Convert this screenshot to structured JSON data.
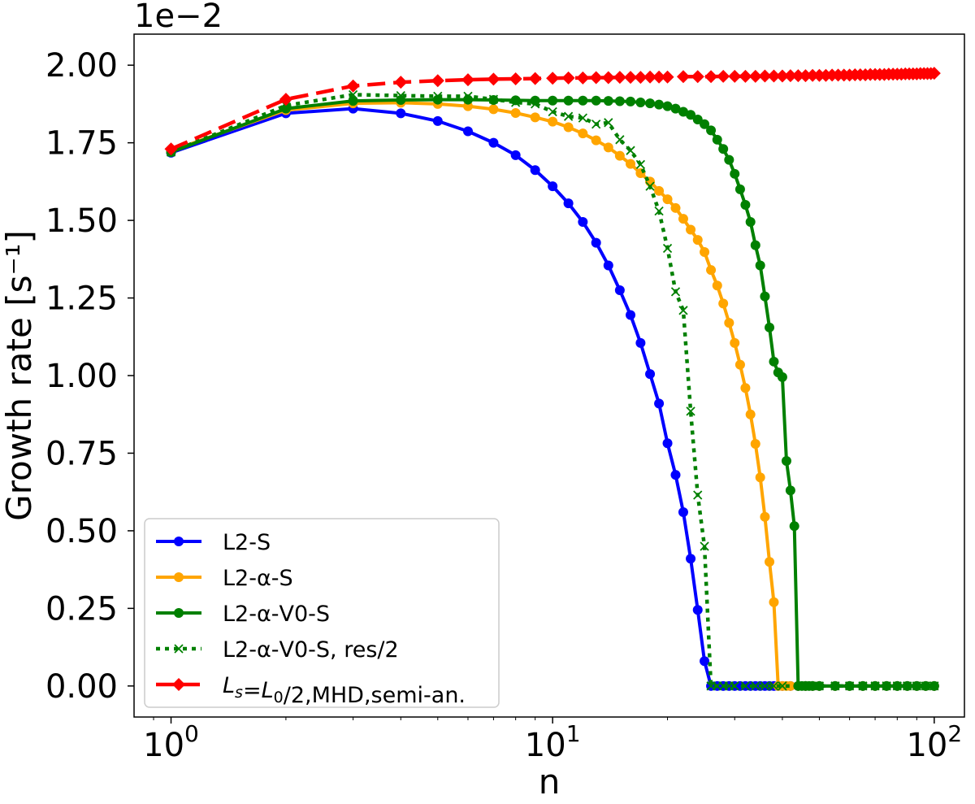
{
  "chart_data": {
    "type": "line",
    "xscale": "log",
    "xlim": [
      0.8,
      120
    ],
    "ylim": [
      -0.1,
      2.1
    ],
    "yscale_offset": "1e−2",
    "xlabel": "n",
    "ylabel": "Growth rate [s⁻¹]",
    "x_ticks": [
      1,
      10,
      100
    ],
    "x_tick_labels": [
      {
        "base": "10",
        "exp": "0"
      },
      {
        "base": "10",
        "exp": "1"
      },
      {
        "base": "10",
        "exp": "2"
      }
    ],
    "y_ticks": [
      0,
      0.25,
      0.5,
      0.75,
      1.0,
      1.25,
      1.5,
      1.75,
      2.0
    ],
    "y_tick_labels": [
      "0.00",
      "0.25",
      "0.50",
      "0.75",
      "1.00",
      "1.25",
      "1.50",
      "1.75",
      "2.00"
    ],
    "grid": false,
    "legend_position": "lower-left",
    "series": [
      {
        "name": "L2-S",
        "color": "#0000ff",
        "line": "solid",
        "marker": "circle",
        "x": [
          1,
          2,
          3,
          4,
          5,
          6,
          7,
          8,
          9,
          10,
          11,
          12,
          13,
          14,
          15,
          16,
          17,
          18,
          19,
          20,
          21,
          22,
          23,
          24,
          25,
          26,
          27,
          28,
          29,
          30,
          31,
          32,
          33,
          34,
          35,
          36,
          37,
          38,
          39,
          40,
          42,
          44,
          46,
          48,
          50,
          55,
          60,
          65,
          70,
          75,
          80,
          85,
          90,
          95,
          100
        ],
        "y": [
          1.718,
          1.845,
          1.86,
          1.845,
          1.82,
          1.787,
          1.75,
          1.71,
          1.662,
          1.61,
          1.555,
          1.495,
          1.428,
          1.355,
          1.275,
          1.195,
          1.105,
          1.005,
          0.91,
          0.782,
          0.68,
          0.56,
          0.41,
          0.245,
          0.08,
          0,
          0,
          0,
          0,
          0,
          0,
          0,
          0,
          0,
          0,
          0,
          0,
          0,
          0,
          0,
          0,
          0,
          0,
          0,
          0,
          0,
          0,
          0,
          0,
          0,
          0,
          0,
          0,
          0,
          0
        ]
      },
      {
        "name": "L2-α-S",
        "color": "#ffa500",
        "line": "solid",
        "marker": "circle",
        "x": [
          1,
          2,
          3,
          4,
          5,
          6,
          7,
          8,
          9,
          10,
          11,
          12,
          13,
          14,
          15,
          16,
          17,
          18,
          19,
          20,
          21,
          22,
          23,
          24,
          25,
          26,
          27,
          28,
          29,
          30,
          31,
          32,
          33,
          34,
          35,
          36,
          37,
          38,
          39,
          40,
          41,
          42,
          44,
          46,
          48,
          50,
          55,
          60,
          65,
          70,
          75,
          80,
          85,
          90,
          95,
          100
        ],
        "y": [
          1.724,
          1.855,
          1.877,
          1.879,
          1.875,
          1.868,
          1.858,
          1.846,
          1.832,
          1.818,
          1.8,
          1.78,
          1.758,
          1.735,
          1.708,
          1.682,
          1.652,
          1.625,
          1.595,
          1.568,
          1.54,
          1.505,
          1.47,
          1.437,
          1.398,
          1.34,
          1.29,
          1.232,
          1.17,
          1.105,
          1.035,
          0.96,
          0.875,
          0.78,
          0.672,
          0.545,
          0.4,
          0.27,
          0,
          0,
          0,
          0,
          0,
          0,
          0,
          0,
          0,
          0,
          0,
          0,
          0,
          0,
          0,
          0,
          0,
          0
        ]
      },
      {
        "name": "L2-α-V0-S",
        "color": "#008000",
        "line": "solid",
        "marker": "circle",
        "x": [
          1,
          2,
          3,
          4,
          5,
          6,
          7,
          8,
          9,
          10,
          11,
          12,
          13,
          14,
          15,
          16,
          17,
          18,
          19,
          20,
          21,
          22,
          23,
          24,
          25,
          26,
          27,
          28,
          29,
          30,
          31,
          32,
          33,
          34,
          35,
          36,
          37,
          38,
          39,
          40,
          41,
          42,
          43,
          44,
          45,
          46,
          47,
          48,
          50,
          55,
          60,
          65,
          70,
          75,
          80,
          85,
          90,
          95,
          100
        ],
        "y": [
          1.72,
          1.86,
          1.885,
          1.888,
          1.889,
          1.889,
          1.888,
          1.887,
          1.886,
          1.886,
          1.886,
          1.886,
          1.886,
          1.885,
          1.884,
          1.883,
          1.88,
          1.877,
          1.873,
          1.868,
          1.86,
          1.85,
          1.84,
          1.825,
          1.81,
          1.79,
          1.76,
          1.73,
          1.695,
          1.65,
          1.6,
          1.55,
          1.495,
          1.42,
          1.355,
          1.255,
          1.155,
          1.045,
          1.01,
          0.995,
          0.725,
          0.63,
          0.515,
          0,
          0,
          0,
          0,
          0,
          0,
          0,
          0,
          0,
          0,
          0,
          0,
          0,
          0,
          0,
          0
        ]
      },
      {
        "name": "L2-α-V0-S, res/2",
        "color": "#008000",
        "line": "dotted",
        "marker": "x",
        "x": [
          1,
          2,
          3,
          4,
          5,
          6,
          7,
          8,
          9,
          10,
          11,
          12,
          13,
          14,
          15,
          16,
          17,
          18,
          19,
          20,
          21,
          22,
          23,
          24,
          25,
          26,
          27,
          28,
          29,
          30,
          32,
          34,
          36,
          38,
          40,
          45,
          50,
          55,
          60,
          65,
          70,
          75,
          80,
          85,
          90,
          95,
          100
        ],
        "y": [
          1.72,
          1.87,
          1.905,
          1.902,
          1.9,
          1.9,
          1.89,
          1.88,
          1.875,
          1.85,
          1.835,
          1.83,
          1.81,
          1.815,
          1.76,
          1.725,
          1.68,
          1.61,
          1.53,
          1.41,
          1.27,
          1.21,
          0.885,
          0.615,
          0.45,
          0,
          0,
          0,
          0,
          0,
          0,
          0,
          0,
          0,
          0,
          0,
          0,
          0,
          0,
          0,
          0,
          0,
          0,
          0,
          0,
          0,
          0
        ]
      },
      {
        "name": "L_s=L_0/2,MHD,semi-an.",
        "color": "#ff0000",
        "line": "dashed",
        "marker": "diamond",
        "x": [
          1,
          2,
          3,
          4,
          5,
          6,
          7,
          8,
          9,
          10,
          11,
          12,
          13,
          14,
          15,
          16,
          17,
          18,
          19,
          20,
          22,
          24,
          26,
          28,
          30,
          32,
          34,
          36,
          38,
          40,
          42,
          44,
          46,
          48,
          50,
          52,
          54,
          56,
          58,
          60,
          62,
          64,
          66,
          68,
          70,
          72,
          74,
          76,
          78,
          80,
          82,
          84,
          86,
          88,
          90,
          92,
          94,
          96,
          98,
          100
        ],
        "y": [
          1.73,
          1.89,
          1.933,
          1.945,
          1.95,
          1.953,
          1.955,
          1.956,
          1.957,
          1.958,
          1.959,
          1.959,
          1.96,
          1.96,
          1.961,
          1.961,
          1.961,
          1.962,
          1.962,
          1.962,
          1.963,
          1.963,
          1.963,
          1.964,
          1.964,
          1.964,
          1.964,
          1.965,
          1.965,
          1.965,
          1.966,
          1.966,
          1.966,
          1.967,
          1.967,
          1.967,
          1.968,
          1.968,
          1.968,
          1.968,
          1.969,
          1.969,
          1.969,
          1.97,
          1.97,
          1.97,
          1.97,
          1.971,
          1.971,
          1.971,
          1.971,
          1.972,
          1.972,
          1.972,
          1.972,
          1.973,
          1.973,
          1.973,
          1.973,
          1.974
        ]
      }
    ],
    "legend_entries": [
      {
        "text": "L2-S"
      },
      {
        "text": "L2-α-S"
      },
      {
        "text": "L2-α-V0-S"
      },
      {
        "text": "L2-α-V0-S, res/2"
      },
      {
        "text": "L_s=L_0/2,MHD,semi-an."
      }
    ]
  }
}
